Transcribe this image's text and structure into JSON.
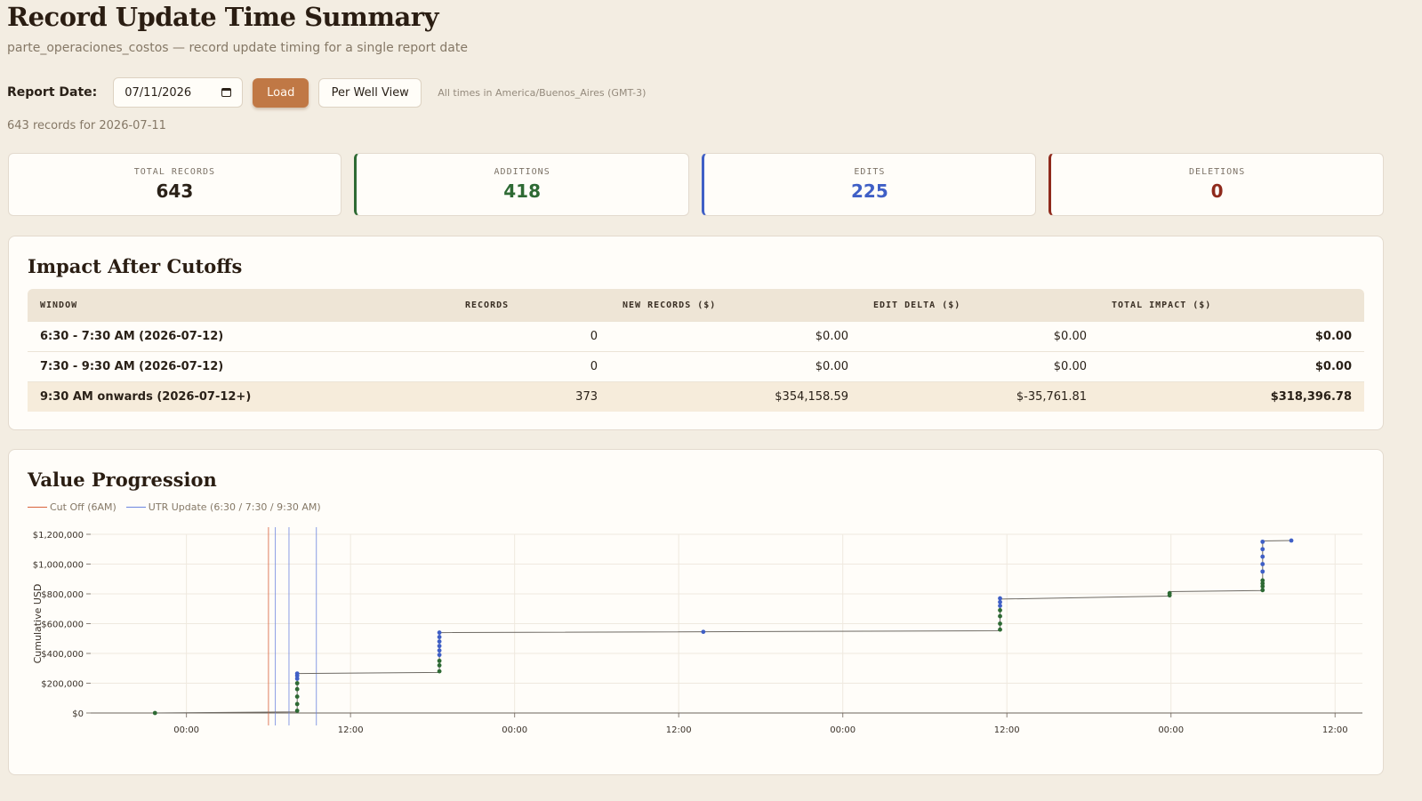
{
  "header": {
    "title": "Record Update Time Summary",
    "subtitle": "parte_operaciones_costos — record update timing for a single report date"
  },
  "controls": {
    "report_date_label": "Report Date:",
    "report_date_value": "07/11/2026",
    "load_label": "Load",
    "per_well_label": "Per Well View",
    "timezone_note": "All times in America/Buenos_Aires (GMT-3)"
  },
  "records_note": "643 records for 2026-07-11",
  "stats": {
    "total_label": "TOTAL RECORDS",
    "total_value": "643",
    "additions_label": "ADDITIONS",
    "additions_value": "418",
    "edits_label": "EDITS",
    "edits_value": "225",
    "deletions_label": "DELETIONS",
    "deletions_value": "0"
  },
  "colors": {
    "additions": "#2e6a34",
    "edits": "#3f5fc6",
    "deletions": "#8f2a1c",
    "accent": "#c07845",
    "cutoff": "#d9623b",
    "utr": "#6d86e0"
  },
  "impact": {
    "title": "Impact After Cutoffs",
    "headers": [
      "WINDOW",
      "RECORDS",
      "NEW RECORDS ($)",
      "EDIT DELTA ($)",
      "TOTAL IMPACT ($)"
    ],
    "rows": [
      {
        "window": "6:30 - 7:30 AM (2026-07-12)",
        "records": "0",
        "new_records": "$0.00",
        "edit_delta": "$0.00",
        "total": "$0.00"
      },
      {
        "window": "7:30 - 9:30 AM (2026-07-12)",
        "records": "0",
        "new_records": "$0.00",
        "edit_delta": "$0.00",
        "total": "$0.00"
      },
      {
        "window": "9:30 AM onwards (2026-07-12+)",
        "records": "373",
        "new_records": "$354,158.59",
        "edit_delta": "$-35,761.81",
        "total": "$318,396.78"
      }
    ]
  },
  "progression": {
    "title": "Value Progression",
    "legend_cutoff": "Cut Off (6AM)",
    "legend_utr": "UTR Update (6:30 / 7:30 / 9:30 AM)"
  },
  "chart_data": {
    "type": "line",
    "ylabel": "Cumulative USD",
    "ylim": [
      0,
      1200000
    ],
    "y_ticks": [
      0,
      200000,
      400000,
      600000,
      800000,
      1000000,
      1200000
    ],
    "y_tick_labels": [
      "$0",
      "$200,000",
      "$400,000",
      "$600,000",
      "$800,000",
      "$1,000,000",
      "$1,200,000"
    ],
    "xlim_hours": [
      -7,
      86
    ],
    "x_tick_hours": [
      0,
      12,
      24,
      36,
      48,
      60,
      72,
      84
    ],
    "x_tick_labels": [
      "00:00",
      "12:00",
      "00:00",
      "12:00",
      "00:00",
      "12:00",
      "00:00",
      "12:00"
    ],
    "cutoff_hours": [
      6
    ],
    "utr_hours": [
      6.5,
      7.5,
      9.5
    ],
    "line": [
      [
        -2.3,
        0
      ],
      [
        8.1,
        8000
      ],
      [
        8.1,
        265000
      ],
      [
        18.5,
        272000
      ],
      [
        18.5,
        540000
      ],
      [
        59.5,
        552000
      ],
      [
        59.5,
        765000
      ],
      [
        71.9,
        785000
      ],
      [
        71.9,
        815000
      ],
      [
        78.7,
        822000
      ],
      [
        78.7,
        1155000
      ],
      [
        80.8,
        1158000
      ]
    ],
    "series": [
      {
        "name": "additions",
        "color": "#2e6a34",
        "points": [
          [
            -2.3,
            0
          ],
          [
            8.1,
            15000
          ],
          [
            8.1,
            60000
          ],
          [
            8.1,
            110000
          ],
          [
            8.1,
            160000
          ],
          [
            8.1,
            200000
          ],
          [
            18.5,
            280000
          ],
          [
            18.5,
            320000
          ],
          [
            18.5,
            350000
          ],
          [
            59.5,
            560000
          ],
          [
            59.5,
            600000
          ],
          [
            59.5,
            650000
          ],
          [
            59.5,
            690000
          ],
          [
            71.9,
            790000
          ],
          [
            71.9,
            805000
          ],
          [
            78.7,
            825000
          ],
          [
            78.7,
            850000
          ],
          [
            78.7,
            870000
          ],
          [
            78.7,
            890000
          ]
        ]
      },
      {
        "name": "edits",
        "color": "#3f5fc6",
        "points": [
          [
            8.1,
            230000
          ],
          [
            8.1,
            250000
          ],
          [
            8.1,
            265000
          ],
          [
            18.5,
            390000
          ],
          [
            18.5,
            420000
          ],
          [
            18.5,
            450000
          ],
          [
            18.5,
            480000
          ],
          [
            18.5,
            510000
          ],
          [
            18.5,
            540000
          ],
          [
            37.8,
            545000
          ],
          [
            59.5,
            720000
          ],
          [
            59.5,
            745000
          ],
          [
            59.5,
            770000
          ],
          [
            78.7,
            950000
          ],
          [
            78.7,
            1000000
          ],
          [
            78.7,
            1050000
          ],
          [
            78.7,
            1100000
          ],
          [
            78.7,
            1150000
          ],
          [
            80.8,
            1158000
          ]
        ]
      }
    ]
  }
}
